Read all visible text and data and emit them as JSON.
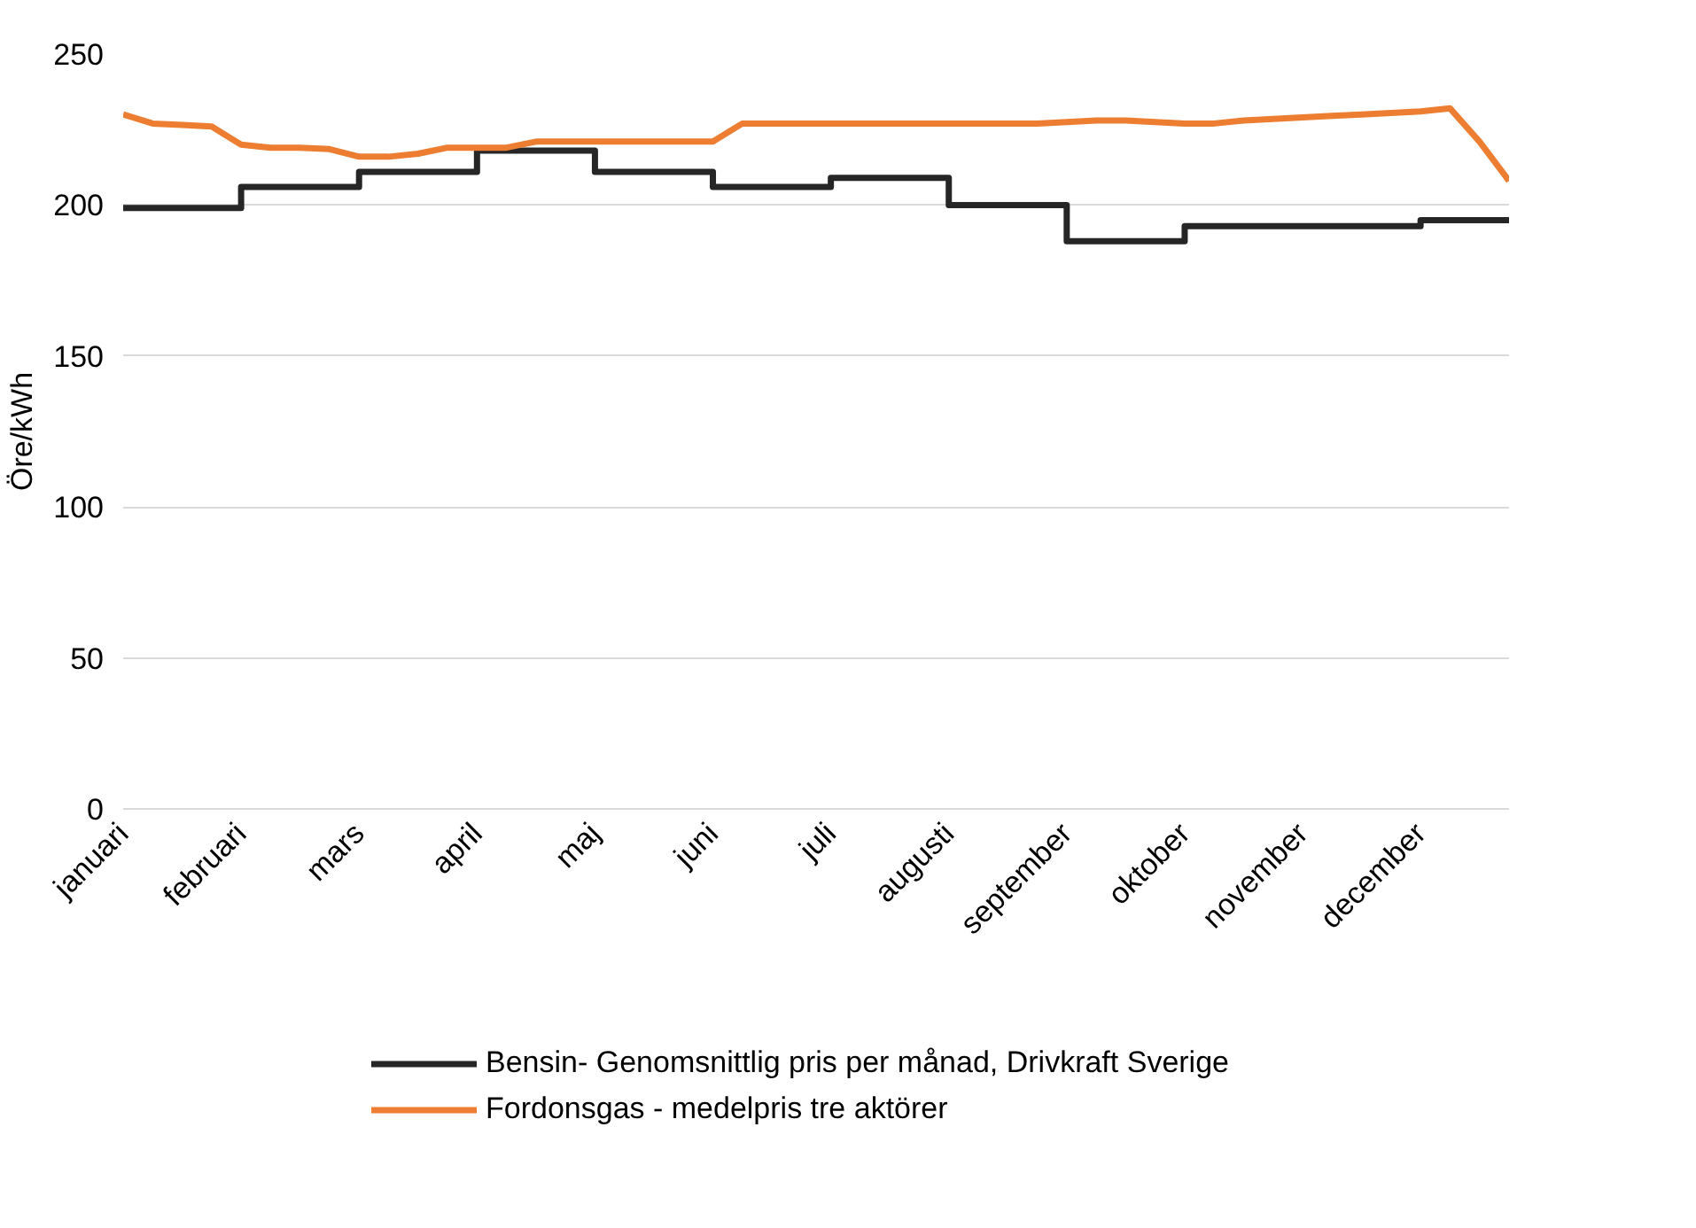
{
  "chart_data": {
    "type": "line",
    "ylabel": "Öre/kWh",
    "categories": [
      "januari",
      null,
      null,
      null,
      "februari",
      null,
      null,
      null,
      "mars",
      null,
      null,
      null,
      "april",
      null,
      null,
      null,
      "maj",
      null,
      null,
      null,
      "juni",
      null,
      null,
      null,
      "juli",
      null,
      null,
      null,
      "augusti",
      null,
      null,
      null,
      "september",
      null,
      null,
      null,
      "oktober",
      null,
      null,
      null,
      "november",
      null,
      null,
      null,
      "december",
      null,
      null,
      null
    ],
    "ylim": [
      0,
      250
    ],
    "yticks": [
      0,
      50,
      100,
      150,
      200,
      250
    ],
    "grid": "y",
    "legend": "bottom",
    "series": [
      {
        "name": "Bensin- Genomsnittlig pris per månad, Drivkraft Sverige",
        "type": "step",
        "color": "#262626",
        "values": [
          199,
          199,
          199,
          199,
          206,
          206,
          206,
          206,
          211,
          211,
          211,
          211,
          218,
          218,
          218,
          218,
          211,
          211,
          211,
          211,
          206,
          206,
          206,
          206,
          209,
          209,
          209,
          209,
          200,
          200,
          200,
          200,
          188,
          188,
          188,
          188,
          193,
          193,
          193,
          193,
          193,
          193,
          193,
          193,
          195,
          195,
          195,
          195
        ]
      },
      {
        "name": "Fordonsgas - medelpris tre aktörer",
        "color": "#ed7d31",
        "values": [
          230,
          227,
          226.5,
          226,
          220,
          219,
          219,
          218.5,
          216,
          216,
          217,
          219,
          219,
          219,
          221,
          221,
          221,
          221,
          221,
          221,
          221,
          227,
          227,
          227,
          227,
          227,
          227,
          227,
          227,
          227,
          227,
          227,
          227.5,
          228,
          228,
          227.5,
          227,
          227,
          228,
          228.5,
          229,
          229.5,
          230,
          230.5,
          231,
          232,
          221,
          208
        ]
      }
    ]
  }
}
